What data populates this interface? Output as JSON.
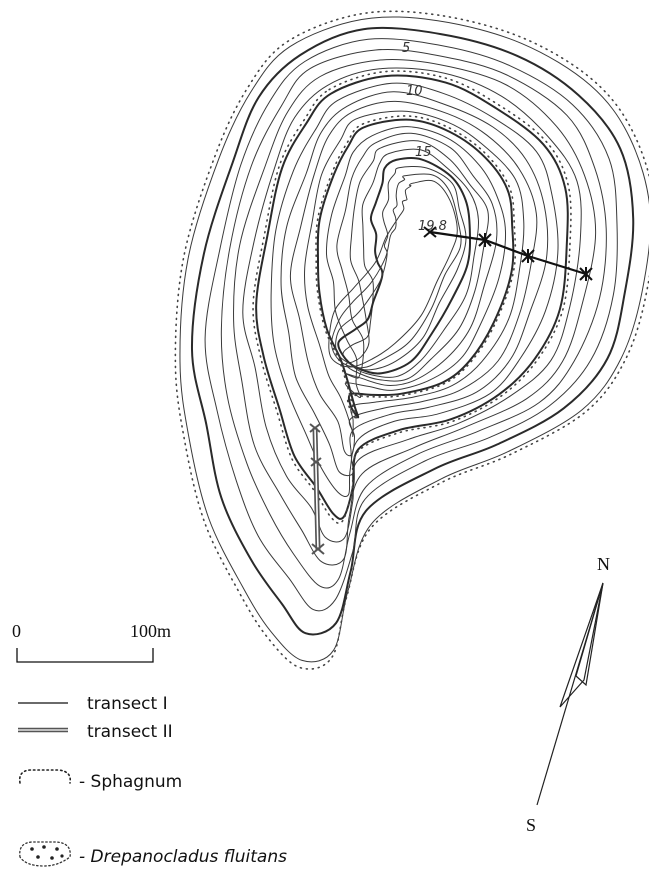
{
  "contour_labels": {
    "c5": "5",
    "c10": "10",
    "c15": "15",
    "summit": "19.8"
  },
  "scale_bar": {
    "start": "0",
    "end": "100m"
  },
  "north_arrow": {
    "north": "N",
    "south": "S"
  },
  "legend": {
    "transect_1": "transect I",
    "transect_2": "transect II",
    "sphagnum": "- Sphagnum",
    "drepanocladus": "- Drepanocladus fluitans"
  },
  "colors": {
    "contour": "#3a3a3a",
    "contour_thick": "#2a2a2a",
    "transect_1": "#111111",
    "transect_2": "#555555"
  }
}
